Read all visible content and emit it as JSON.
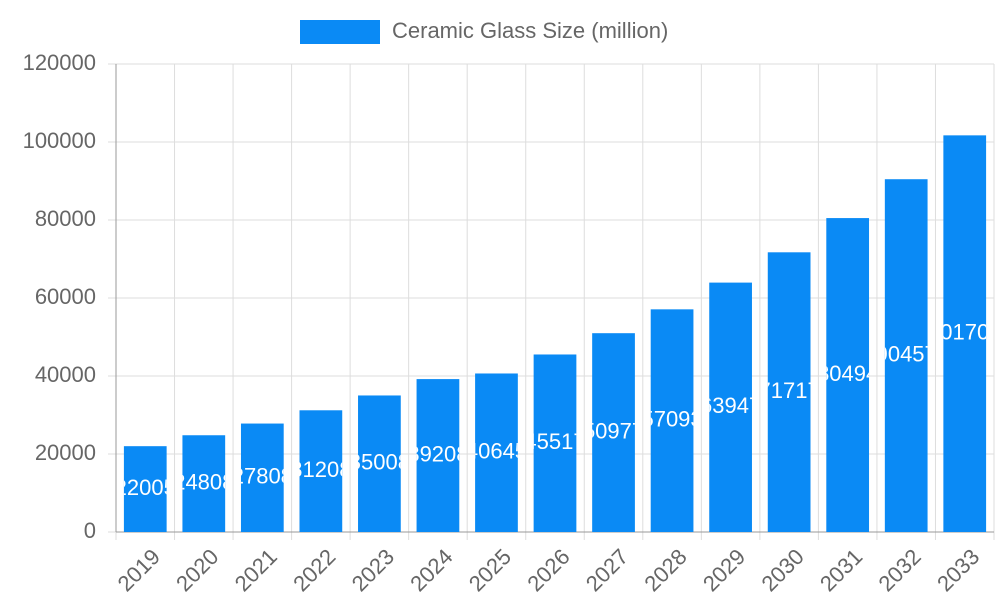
{
  "chart_data": {
    "type": "bar",
    "categories": [
      "2019",
      "2020",
      "2021",
      "2022",
      "2023",
      "2024",
      "2025",
      "2026",
      "2027",
      "2028",
      "2029",
      "2030",
      "2031",
      "2032",
      "2033"
    ],
    "series": [
      {
        "name": "Ceramic Glass Size (million)",
        "color": "#0a8af5",
        "values": [
          22005,
          24808,
          27808,
          31208,
          35008,
          39208,
          40645,
          45517,
          50977,
          57093,
          63947,
          71717,
          80494,
          90457,
          101705
        ]
      }
    ],
    "ylim": [
      0,
      120000
    ],
    "yticks": [
      0,
      20000,
      40000,
      60000,
      80000,
      100000,
      120000
    ],
    "grid": true,
    "legend": "top"
  }
}
